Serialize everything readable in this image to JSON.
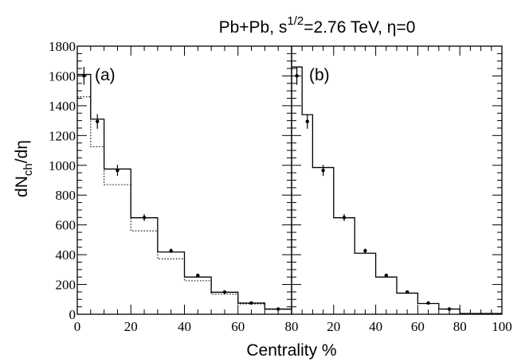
{
  "chart_data": {
    "type": "step",
    "title": {
      "prefix": "Pb+Pb, s",
      "superscript": "1/2",
      "suffix": "=2.76 TeV,  η=0"
    },
    "xlabel": "Centrality %",
    "ylabel": {
      "main": "dN",
      "subscript": "ch",
      "tail": "/dη"
    },
    "bin_edges": [
      0,
      5,
      10,
      20,
      30,
      40,
      50,
      60,
      70,
      80,
      100
    ],
    "panels": [
      {
        "label": "(a)",
        "xlim": [
          0,
          80
        ],
        "xticks": [
          0,
          20,
          40,
          60,
          80
        ],
        "series": [
          {
            "style": "solid",
            "values": [
              1610,
              1310,
              975,
              648,
              418,
              250,
              148,
              75,
              35,
              5
            ]
          },
          {
            "style": "dotted",
            "values": [
              1460,
              1125,
              870,
              560,
              372,
              225,
              135,
              70,
              33,
              5
            ]
          }
        ],
        "points": {
          "x": [
            2.5,
            7.5,
            15,
            25,
            35,
            45,
            55,
            65,
            75
          ],
          "y": [
            1601,
            1294,
            966,
            649,
            426,
            261,
            149,
            76,
            35
          ],
          "err": [
            60,
            49,
            37,
            23,
            15,
            9,
            6,
            4,
            2
          ]
        }
      },
      {
        "label": "(b)",
        "xlim": [
          0,
          100
        ],
        "xticks": [
          0,
          20,
          40,
          60,
          80,
          100
        ],
        "series": [
          {
            "style": "solid",
            "values": [
              1660,
              1340,
              985,
              648,
              410,
              250,
              142,
              72,
              35,
              5
            ]
          }
        ],
        "points": {
          "x": [
            2.5,
            7.5,
            15,
            25,
            35,
            45,
            55,
            65,
            75
          ],
          "y": [
            1601,
            1294,
            966,
            649,
            426,
            261,
            149,
            76,
            35
          ],
          "err": [
            60,
            49,
            37,
            23,
            15,
            9,
            6,
            4,
            2
          ]
        }
      }
    ],
    "ylim": [
      0,
      1800
    ],
    "yticks": [
      0,
      200,
      400,
      600,
      800,
      1000,
      1200,
      1400,
      1600,
      1800
    ]
  }
}
